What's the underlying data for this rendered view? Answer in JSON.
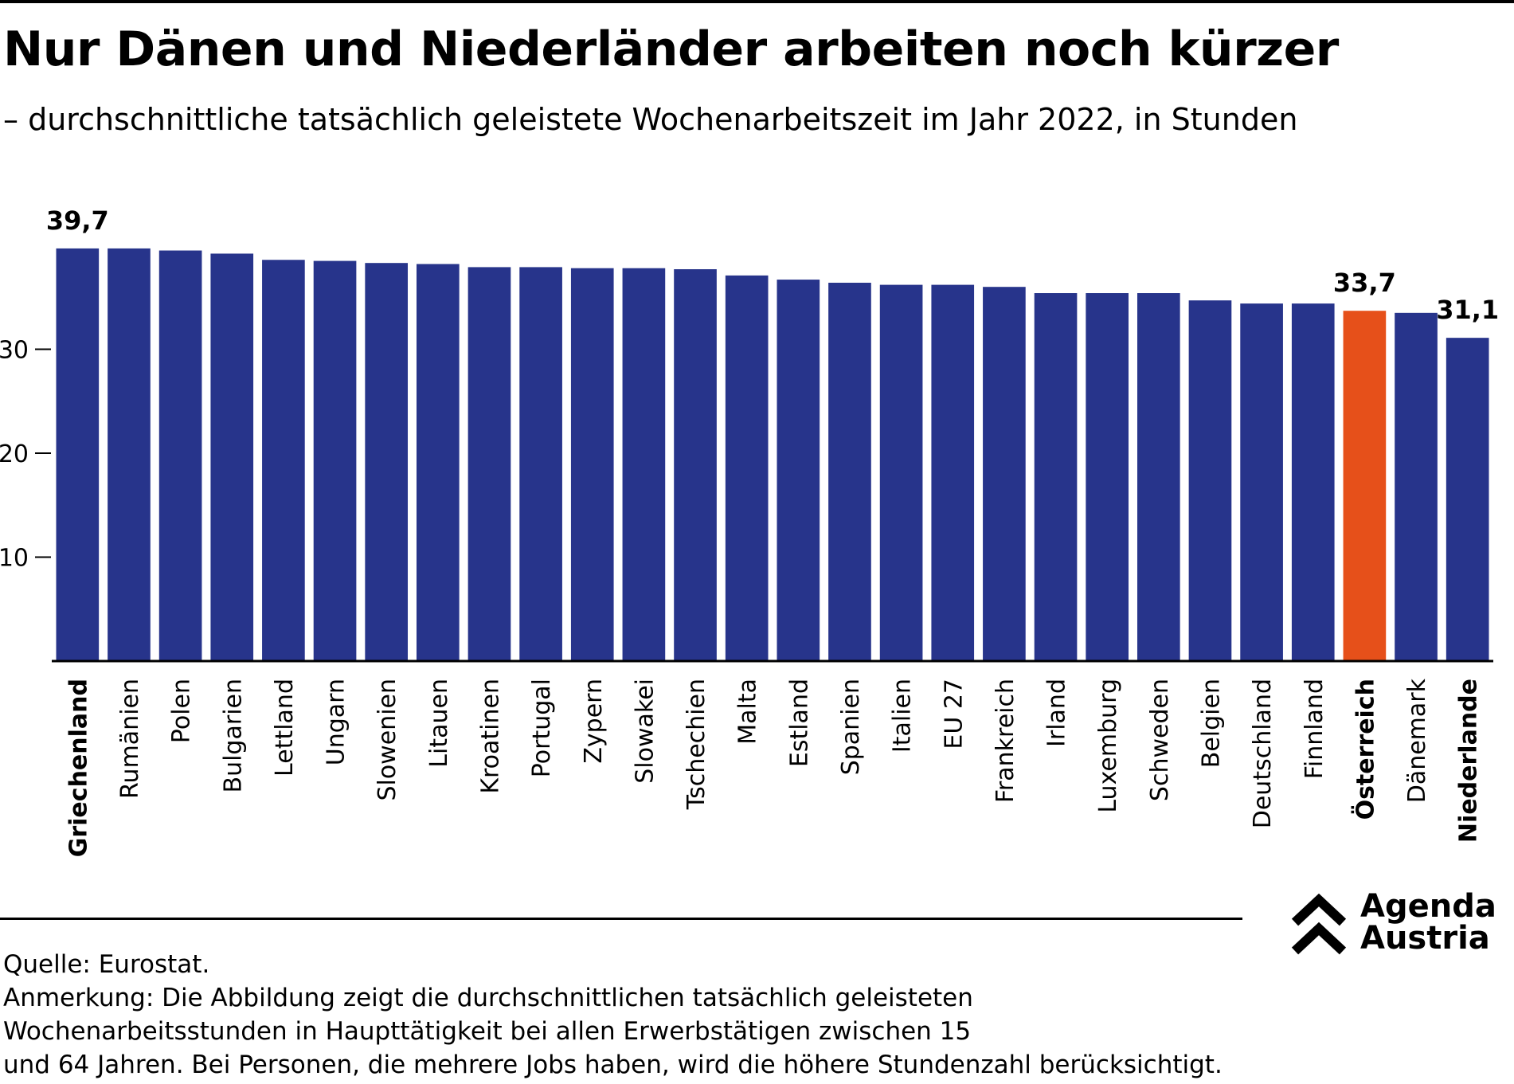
{
  "title": "Nur Dänen und Niederländer arbeiten noch kürzer",
  "subtitle": "– durchschnittliche tatsächlich geleistete Wochenarbeitszeit im Jahr 2022, in Stunden",
  "chart_data": {
    "type": "bar",
    "categories": [
      "Griechenland",
      "Rumänien",
      "Polen",
      "Bulgarien",
      "Lettland",
      "Ungarn",
      "Slowenien",
      "Litauen",
      "Kroatinen",
      "Portugal",
      "Zypern",
      "Slowakei",
      "Tschechien",
      "Malta",
      "Estland",
      "Spanien",
      "Italien",
      "EU 27",
      "Frankreich",
      "Irland",
      "Luxemburg",
      "Schweden",
      "Belgien",
      "Deutschland",
      "Finnland",
      "Österreich",
      "Dänemark",
      "Niederlande"
    ],
    "values": [
      39.7,
      39.7,
      39.5,
      39.2,
      38.6,
      38.5,
      38.3,
      38.2,
      37.9,
      37.9,
      37.8,
      37.8,
      37.7,
      37.1,
      36.7,
      36.4,
      36.2,
      36.2,
      36.0,
      35.4,
      35.4,
      35.4,
      34.7,
      34.4,
      34.4,
      33.7,
      33.5,
      31.1
    ],
    "highlight_category": "Österreich",
    "bold_categories": [
      "Griechenland",
      "Österreich",
      "Niederlande"
    ],
    "data_labels": [
      {
        "category": "Griechenland",
        "text": "39,7"
      },
      {
        "category": "Österreich",
        "text": "33,7"
      },
      {
        "category": "Niederlande",
        "text": "31,1"
      }
    ],
    "yticks": [
      10,
      20,
      30
    ],
    "ylim": [
      0,
      40
    ],
    "grid": false,
    "colors": {
      "bar": "#27348b",
      "highlight": "#e6501a"
    },
    "xlabel": "",
    "ylabel": ""
  },
  "footer": {
    "source": "Quelle: Eurostat.",
    "note_lines": [
      "Anmerkung: Die Abbildung zeigt die durchschnittlichen tatsächlich geleisteten",
      "Wochenarbeitsstunden in Haupttätigkeit bei allen Erwerbstätigen zwischen 15",
      "und 64 Jahren. Bei Personen, die mehrere Jobs haben, wird die höhere Stundenzahl berücksichtigt."
    ]
  },
  "logo": {
    "line1": "Agenda",
    "line2": "Austria",
    "icon": "double-chevron-up-icon"
  }
}
